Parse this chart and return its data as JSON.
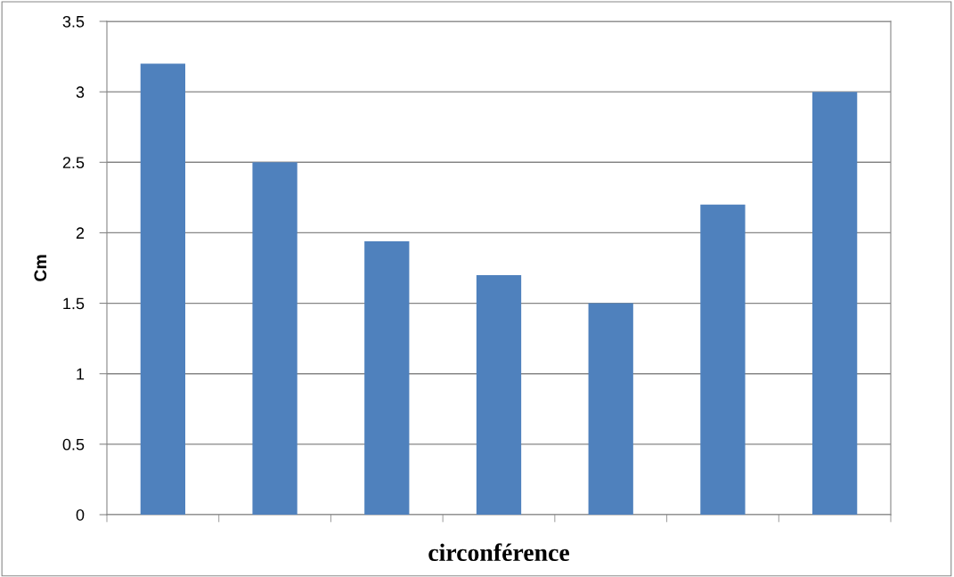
{
  "chart_data": {
    "type": "bar",
    "xlabel": "circonférence",
    "ylabel": "Cm",
    "categories": [
      null,
      null,
      null,
      null,
      null,
      null,
      null
    ],
    "values": [
      3.2,
      2.5,
      1.94,
      1.7,
      1.5,
      2.2,
      3.0
    ],
    "color": "#4f81bd",
    "ylim": [
      0,
      3.5
    ],
    "yticks": [
      0,
      0.5,
      1,
      1.5,
      2,
      2.5,
      3,
      3.5
    ],
    "grid": "y",
    "legend": false
  }
}
